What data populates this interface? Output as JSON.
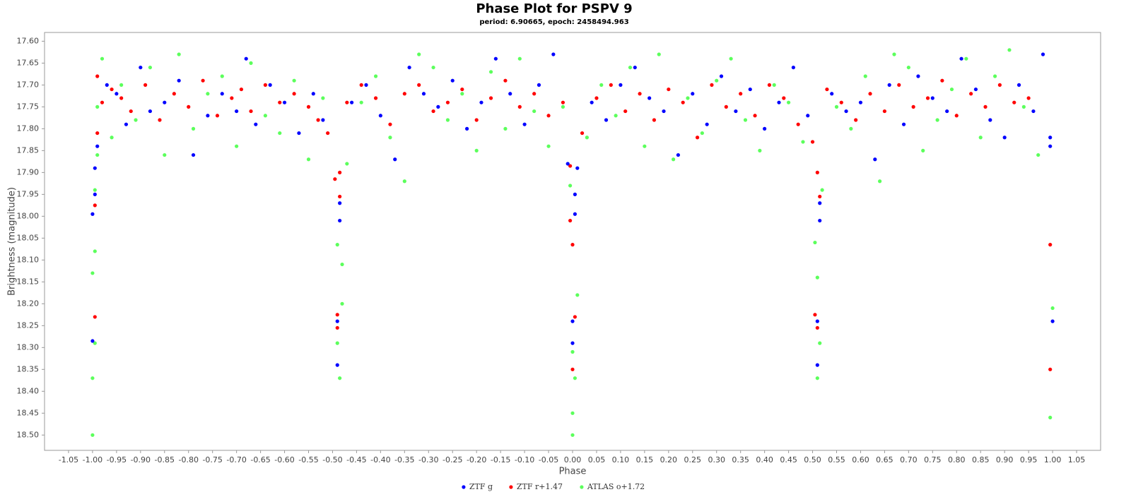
{
  "chart_data": {
    "type": "scatter",
    "title": "Phase Plot for PSPV 9",
    "subtitle": "period: 6.90665, epoch: 2458494.963",
    "x_label": "Phase",
    "y_label": "Brightness (magnitude)",
    "xlim": [
      -1.1,
      1.1
    ],
    "ylim": [
      17.58,
      18.535
    ],
    "y_inverted": true,
    "grid": false,
    "legend": "bottom",
    "xticks": [
      -1.05,
      {
        "value": -1.0,
        "label": "-1.00"
      },
      -0.95,
      {
        "value": -0.9,
        "label": "-0.90"
      },
      -0.85,
      {
        "value": -0.8,
        "label": "-0.80"
      },
      -0.75,
      {
        "value": -0.7,
        "label": "-0.70"
      },
      -0.65,
      {
        "value": -0.6,
        "label": "-0.60"
      },
      -0.55,
      {
        "value": -0.5,
        "label": "-0.50"
      },
      -0.45,
      {
        "value": -0.4,
        "label": "-0.40"
      },
      -0.35,
      {
        "value": -0.3,
        "label": "-0.30"
      },
      -0.25,
      {
        "value": -0.2,
        "label": "-0.20"
      },
      -0.15,
      {
        "value": -0.1,
        "label": "-0.10"
      },
      -0.05,
      {
        "value": 0,
        "label": "0.00"
      },
      0.05,
      {
        "value": 0.1,
        "label": "0.10"
      },
      0.15,
      {
        "value": 0.2,
        "label": "0.20"
      },
      0.25,
      {
        "value": 0.3,
        "label": "0.30"
      },
      0.35,
      {
        "value": 0.4,
        "label": "0.40"
      },
      0.45,
      {
        "value": 0.5,
        "label": "0.50"
      },
      0.55,
      {
        "value": 0.6,
        "label": "0.60"
      },
      0.65,
      {
        "value": 0.7,
        "label": "0.70"
      },
      0.75,
      {
        "value": 0.8,
        "label": "0.80"
      },
      0.85,
      {
        "value": 0.9,
        "label": "0.90"
      },
      0.95,
      {
        "value": 1.0,
        "label": "1.00"
      },
      1.05
    ],
    "yticks": [
      {
        "value": 17.6,
        "label": "17.60"
      },
      17.65,
      {
        "value": 17.7,
        "label": "17.70"
      },
      17.75,
      {
        "value": 17.8,
        "label": "17.80"
      },
      17.85,
      {
        "value": 17.9,
        "label": "17.90"
      },
      17.95,
      {
        "value": 18.0,
        "label": "18.00"
      },
      18.05,
      {
        "value": 18.1,
        "label": "18.10"
      },
      18.15,
      {
        "value": 18.2,
        "label": "18.20"
      },
      18.25,
      {
        "value": 18.3,
        "label": "18.30"
      },
      18.35,
      {
        "value": 18.4,
        "label": "18.40"
      },
      18.45,
      {
        "value": 18.5,
        "label": "18.50"
      }
    ],
    "series": [
      {
        "name": "ATLAS o+1.72",
        "color": "#5cff5c",
        "x": [
          -1.0,
          -1.0,
          -1.0,
          -0.995,
          -0.995,
          -0.995,
          -0.99,
          -0.99,
          -0.98,
          -0.96,
          -0.94,
          -0.91,
          -0.88,
          -0.85,
          -0.82,
          -0.79,
          -0.76,
          -0.73,
          -0.7,
          -0.67,
          -0.64,
          -0.61,
          -0.58,
          -0.55,
          -0.52,
          -0.49,
          -0.49,
          -0.485,
          -0.48,
          -0.48,
          -0.47,
          -0.44,
          -0.41,
          -0.38,
          -0.35,
          -0.32,
          -0.29,
          -0.26,
          -0.23,
          -0.2,
          -0.17,
          -0.14,
          -0.11,
          -0.08,
          -0.05,
          -0.02,
          -0.005,
          0.0,
          0.0,
          0.0,
          0.005,
          0.01,
          0.03,
          0.06,
          0.09,
          0.12,
          0.15,
          0.18,
          0.21,
          0.24,
          0.27,
          0.3,
          0.33,
          0.36,
          0.39,
          0.42,
          0.45,
          0.48,
          0.505,
          0.51,
          0.51,
          0.515,
          0.52,
          0.55,
          0.58,
          0.61,
          0.64,
          0.67,
          0.7,
          0.73,
          0.76,
          0.79,
          0.82,
          0.85,
          0.88,
          0.91,
          0.94,
          0.97,
          0.995,
          1.0
        ],
        "values": [
          18.5,
          18.37,
          18.13,
          18.08,
          18.29,
          17.94,
          17.86,
          17.75,
          17.64,
          17.82,
          17.7,
          17.78,
          17.66,
          17.86,
          17.63,
          17.8,
          17.72,
          17.68,
          17.84,
          17.65,
          17.77,
          17.81,
          17.69,
          17.87,
          17.73,
          18.065,
          18.29,
          18.37,
          18.11,
          18.2,
          17.88,
          17.74,
          17.68,
          17.82,
          17.92,
          17.63,
          17.66,
          17.78,
          17.72,
          17.85,
          17.67,
          17.8,
          17.64,
          17.76,
          17.84,
          17.75,
          17.93,
          18.5,
          18.45,
          18.31,
          18.37,
          18.18,
          17.82,
          17.7,
          17.77,
          17.66,
          17.84,
          17.63,
          17.87,
          17.73,
          17.81,
          17.69,
          17.64,
          17.78,
          17.85,
          17.7,
          17.74,
          17.83,
          18.06,
          18.14,
          18.37,
          18.29,
          17.94,
          17.75,
          17.8,
          17.68,
          17.92,
          17.63,
          17.66,
          17.85,
          17.78,
          17.71,
          17.64,
          17.82,
          17.68,
          17.62,
          17.75,
          17.86,
          18.46,
          18.21
        ]
      },
      {
        "name": "ZTF r+1.47",
        "color": "#ff0000",
        "x": [
          -0.995,
          -0.995,
          -0.99,
          -0.99,
          -0.98,
          -0.96,
          -0.94,
          -0.92,
          -0.89,
          -0.86,
          -0.83,
          -0.8,
          -0.77,
          -0.74,
          -0.71,
          -0.69,
          -0.67,
          -0.64,
          -0.61,
          -0.58,
          -0.55,
          -0.53,
          -0.51,
          -0.495,
          -0.49,
          -0.49,
          -0.485,
          -0.485,
          -0.47,
          -0.44,
          -0.41,
          -0.38,
          -0.35,
          -0.32,
          -0.29,
          -0.26,
          -0.23,
          -0.2,
          -0.17,
          -0.14,
          -0.11,
          -0.08,
          -0.05,
          -0.02,
          -0.005,
          -0.005,
          0.0,
          0.0,
          0.005,
          0.02,
          0.05,
          0.08,
          0.11,
          0.14,
          0.17,
          0.2,
          0.23,
          0.26,
          0.29,
          0.32,
          0.35,
          0.38,
          0.41,
          0.44,
          0.47,
          0.5,
          0.505,
          0.51,
          0.51,
          0.515,
          0.53,
          0.56,
          0.59,
          0.62,
          0.65,
          0.68,
          0.71,
          0.74,
          0.77,
          0.8,
          0.83,
          0.86,
          0.89,
          0.92,
          0.95,
          0.995,
          0.995
        ],
        "values": [
          18.23,
          17.975,
          17.81,
          17.68,
          17.74,
          17.71,
          17.73,
          17.76,
          17.7,
          17.78,
          17.72,
          17.75,
          17.69,
          17.77,
          17.73,
          17.71,
          17.76,
          17.7,
          17.74,
          17.72,
          17.75,
          17.78,
          17.81,
          17.915,
          18.225,
          18.255,
          17.955,
          17.9,
          17.74,
          17.7,
          17.73,
          17.79,
          17.72,
          17.7,
          17.76,
          17.74,
          17.71,
          17.78,
          17.73,
          17.69,
          17.75,
          17.72,
          17.77,
          17.74,
          17.885,
          18.01,
          18.065,
          18.35,
          18.23,
          17.81,
          17.73,
          17.7,
          17.76,
          17.72,
          17.78,
          17.71,
          17.74,
          17.82,
          17.7,
          17.75,
          17.72,
          17.77,
          17.7,
          17.73,
          17.79,
          17.83,
          18.225,
          18.255,
          17.9,
          17.955,
          17.71,
          17.74,
          17.78,
          17.72,
          17.76,
          17.7,
          17.75,
          17.73,
          17.69,
          17.77,
          17.72,
          17.75,
          17.7,
          17.74,
          17.73,
          18.065,
          18.35
        ]
      },
      {
        "name": "ZTF g",
        "color": "#0000ff",
        "x": [
          -1.0,
          -1.0,
          -0.995,
          -0.995,
          -0.99,
          -0.97,
          -0.95,
          -0.93,
          -0.9,
          -0.88,
          -0.85,
          -0.82,
          -0.79,
          -0.76,
          -0.73,
          -0.7,
          -0.68,
          -0.66,
          -0.63,
          -0.6,
          -0.57,
          -0.54,
          -0.52,
          -0.49,
          -0.49,
          -0.485,
          -0.485,
          -0.46,
          -0.43,
          -0.4,
          -0.37,
          -0.34,
          -0.31,
          -0.28,
          -0.25,
          -0.22,
          -0.19,
          -0.16,
          -0.13,
          -0.1,
          -0.07,
          -0.04,
          -0.01,
          0.0,
          0.0,
          0.005,
          0.005,
          0.01,
          0.04,
          0.07,
          0.1,
          0.13,
          0.16,
          0.19,
          0.22,
          0.25,
          0.28,
          0.31,
          0.34,
          0.37,
          0.4,
          0.43,
          0.46,
          0.49,
          0.51,
          0.51,
          0.515,
          0.515,
          0.54,
          0.57,
          0.6,
          0.63,
          0.66,
          0.69,
          0.72,
          0.75,
          0.78,
          0.81,
          0.84,
          0.87,
          0.9,
          0.93,
          0.96,
          0.98,
          0.995,
          0.995,
          1.0
        ],
        "values": [
          18.285,
          17.995,
          17.95,
          17.89,
          17.84,
          17.7,
          17.72,
          17.79,
          17.66,
          17.76,
          17.74,
          17.69,
          17.86,
          17.77,
          17.72,
          17.76,
          17.64,
          17.79,
          17.7,
          17.74,
          17.81,
          17.72,
          17.78,
          18.34,
          18.24,
          18.01,
          17.97,
          17.74,
          17.7,
          17.77,
          17.87,
          17.66,
          17.72,
          17.75,
          17.69,
          17.8,
          17.74,
          17.64,
          17.72,
          17.79,
          17.7,
          17.63,
          17.88,
          18.29,
          18.24,
          17.995,
          17.95,
          17.89,
          17.74,
          17.78,
          17.7,
          17.66,
          17.73,
          17.76,
          17.86,
          17.72,
          17.79,
          17.68,
          17.76,
          17.71,
          17.8,
          17.74,
          17.66,
          17.77,
          18.34,
          18.24,
          17.97,
          18.01,
          17.72,
          17.76,
          17.74,
          17.87,
          17.7,
          17.79,
          17.68,
          17.73,
          17.76,
          17.64,
          17.71,
          17.78,
          17.82,
          17.7,
          17.76,
          17.63,
          17.84,
          17.82,
          18.24
        ]
      }
    ]
  }
}
